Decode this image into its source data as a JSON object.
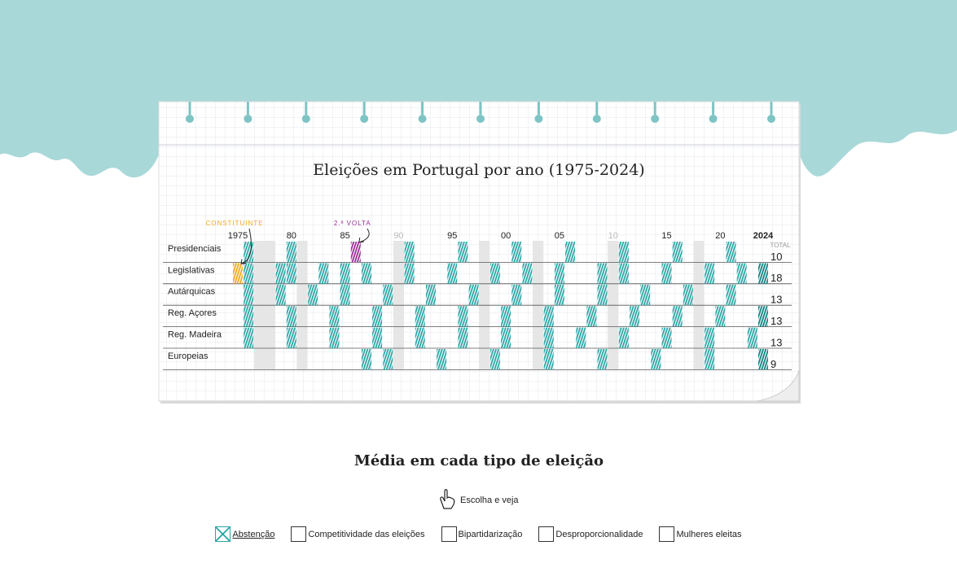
{
  "chart_data": {
    "type": "timeline",
    "title": "Eleições em Portugal por ano (1975-2024)",
    "xlim": [
      1975,
      2024
    ],
    "xticks": [
      1975,
      {
        "value": 1980,
        "label": "80"
      },
      {
        "value": 1985,
        "label": "85"
      },
      {
        "value": 1990,
        "label": "90"
      },
      {
        "value": 1995,
        "label": "95"
      },
      {
        "value": 2000,
        "label": "00"
      },
      {
        "value": 2005,
        "label": "05"
      },
      {
        "value": 2010,
        "label": "10"
      },
      {
        "value": 2015,
        "label": "15"
      },
      {
        "value": 2020,
        "label": "20"
      },
      2024
    ],
    "color": "#2aa5a5",
    "highlight_color": "#0e8282",
    "total_label": "TOTAL",
    "rows": [
      {
        "name": "Presidenciais",
        "years": [
          1976,
          1980,
          1986,
          1991,
          1996,
          2001,
          2006,
          2011,
          2016,
          2021
        ],
        "total": 10
      },
      {
        "name": "Legislativas",
        "years": [
          1975,
          1976,
          1979,
          1980,
          1983,
          1985,
          1987,
          1991,
          1995,
          1999,
          2002,
          2005,
          2009,
          2011,
          2015,
          2019,
          2022,
          2024
        ],
        "total": 18
      },
      {
        "name": "Autárquicas",
        "years": [
          1976,
          1979,
          1982,
          1985,
          1989,
          1993,
          1997,
          2001,
          2005,
          2009,
          2013,
          2017,
          2021
        ],
        "total": 13
      },
      {
        "name": "Reg. Açores",
        "years": [
          1976,
          1980,
          1984,
          1988,
          1992,
          1996,
          2000,
          2004,
          2008,
          2012,
          2016,
          2020,
          2024
        ],
        "total": 13
      },
      {
        "name": "Reg. Madeira",
        "years": [
          1976,
          1980,
          1984,
          1988,
          1992,
          1996,
          2000,
          2004,
          2007,
          2011,
          2015,
          2019,
          2023
        ],
        "total": 13
      },
      {
        "name": "Europeias",
        "years": [
          1987,
          1989,
          1994,
          1999,
          2004,
          2009,
          2014,
          2019,
          2024
        ],
        "total": 9
      }
    ],
    "annotations": [
      {
        "text": "CONSTITUINTE",
        "row": 1,
        "year": 1975,
        "color": "#f0a818"
      },
      {
        "text": "2.ª VOLTA",
        "row": 0,
        "year": 1986,
        "color": "#9c2c94"
      }
    ]
  },
  "controls": {
    "heading": "Média em cada tipo de eleição",
    "hint": "Escolha e veja",
    "options": [
      {
        "label": "Abstenção",
        "checked": true
      },
      {
        "label": "Competitividade das eleições",
        "checked": false
      },
      {
        "label": "Bipartidarização",
        "checked": false
      },
      {
        "label": "Desproporcionalidade",
        "checked": false
      },
      {
        "label": "Mulheres eleitas",
        "checked": false
      }
    ]
  }
}
